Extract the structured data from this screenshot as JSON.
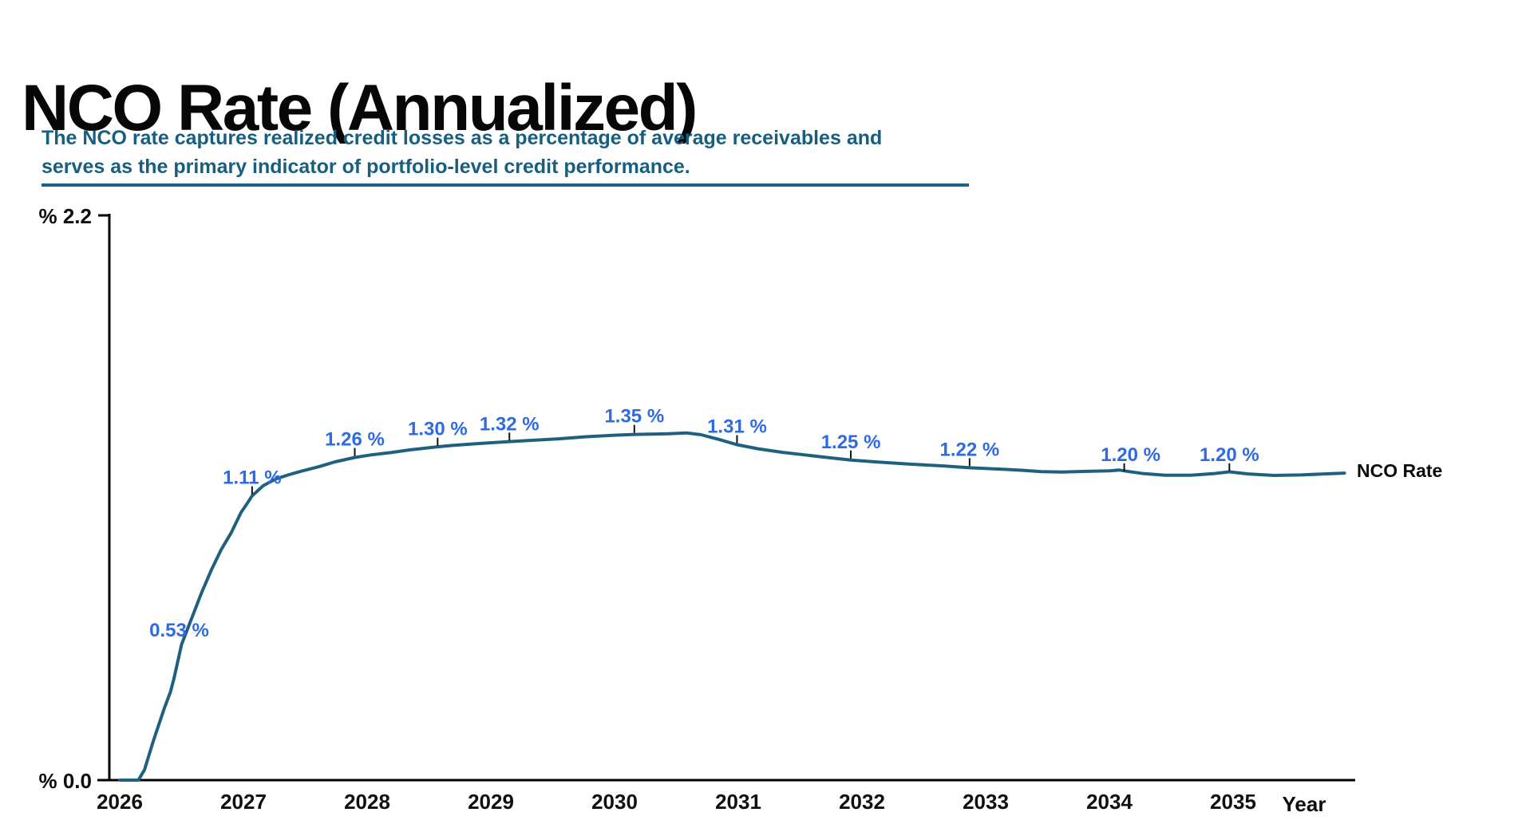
{
  "page": {
    "title": "NCO Rate (Annualized)"
  },
  "subtitle": {
    "line1": "The NCO rate captures realized credit losses as a percentage of average receivables and",
    "line2": "serves as the primary indicator of portfolio-level credit performance."
  },
  "colors": {
    "title_text": "#070707",
    "subtitle_text": "#175e80",
    "subtitle_underline": "#1a628a",
    "line": "#20607f",
    "data_label": "#2d6be4",
    "axis": "#000000",
    "tick_mark": "#111111",
    "background": "#ffffff"
  },
  "chart_data": {
    "type": "line",
    "title": "NCO Rate (Annualized)",
    "xlabel": "Year",
    "ylabel": "%",
    "ylim": [
      0.0,
      2.2
    ],
    "grid": false,
    "y_axis_labels": {
      "top": "% 2.2",
      "bottom": "% 0.0"
    },
    "x_ticks": [
      "2026",
      "2027",
      "2028",
      "2029",
      "2030",
      "2031",
      "2032",
      "2033",
      "2034",
      "2035"
    ],
    "legend": {
      "position": "right-of-line-end",
      "entries": [
        "NCO Rate"
      ]
    },
    "series": [
      {
        "name": "NCO Rate",
        "points": [
          [
            2026.0,
            0.0
          ],
          [
            2026.15,
            0.0
          ],
          [
            2026.2,
            0.04
          ],
          [
            2026.27,
            0.15
          ],
          [
            2026.36,
            0.28
          ],
          [
            2026.41,
            0.345
          ],
          [
            2026.44,
            0.4
          ],
          [
            2026.5,
            0.53
          ],
          [
            2026.58,
            0.63
          ],
          [
            2026.66,
            0.73
          ],
          [
            2026.74,
            0.82
          ],
          [
            2026.82,
            0.9
          ],
          [
            2026.9,
            0.965
          ],
          [
            2026.98,
            1.045
          ],
          [
            2027.03,
            1.08
          ],
          [
            2027.07,
            1.11
          ],
          [
            2027.16,
            1.15
          ],
          [
            2027.26,
            1.176
          ],
          [
            2027.37,
            1.193
          ],
          [
            2027.48,
            1.208
          ],
          [
            2027.61,
            1.224
          ],
          [
            2027.74,
            1.243
          ],
          [
            2027.9,
            1.26
          ],
          [
            2028.03,
            1.27
          ],
          [
            2028.19,
            1.279
          ],
          [
            2028.35,
            1.29
          ],
          [
            2028.57,
            1.302
          ],
          [
            2028.68,
            1.307
          ],
          [
            2028.88,
            1.314
          ],
          [
            2029.15,
            1.322
          ],
          [
            2029.29,
            1.326
          ],
          [
            2029.55,
            1.333
          ],
          [
            2029.77,
            1.341
          ],
          [
            2030.0,
            1.347
          ],
          [
            2030.16,
            1.35
          ],
          [
            2030.29,
            1.351
          ],
          [
            2030.44,
            1.353
          ],
          [
            2030.58,
            1.356
          ],
          [
            2030.7,
            1.349
          ],
          [
            2030.84,
            1.331
          ],
          [
            2030.99,
            1.31
          ],
          [
            2031.16,
            1.294
          ],
          [
            2031.36,
            1.28
          ],
          [
            2031.56,
            1.269
          ],
          [
            2031.74,
            1.259
          ],
          [
            2031.91,
            1.25
          ],
          [
            2032.13,
            1.242
          ],
          [
            2032.39,
            1.234
          ],
          [
            2032.66,
            1.227
          ],
          [
            2032.87,
            1.22
          ],
          [
            2033.1,
            1.215
          ],
          [
            2033.3,
            1.21
          ],
          [
            2033.45,
            1.205
          ],
          [
            2033.62,
            1.203
          ],
          [
            2033.82,
            1.206
          ],
          [
            2034.0,
            1.208
          ],
          [
            2034.08,
            1.211
          ],
          [
            2034.16,
            1.205
          ],
          [
            2034.28,
            1.197
          ],
          [
            2034.45,
            1.191
          ],
          [
            2034.66,
            1.191
          ],
          [
            2034.84,
            1.197
          ],
          [
            2034.97,
            1.204
          ],
          [
            2035.12,
            1.196
          ],
          [
            2035.33,
            1.19
          ],
          [
            2035.55,
            1.192
          ],
          [
            2035.74,
            1.196
          ],
          [
            2035.9,
            1.199
          ]
        ]
      }
    ],
    "annotations": [
      {
        "year": 2026.5,
        "value": 0.53,
        "label": "0.53 %",
        "tick": false,
        "dx": -3,
        "dy": -10
      },
      {
        "year": 2027.07,
        "value": 1.11,
        "label": "1.11 %",
        "tick": true
      },
      {
        "year": 2027.9,
        "value": 1.26,
        "label": "1.26 %",
        "tick": true
      },
      {
        "year": 2028.57,
        "value": 1.3,
        "label": "1.30 %",
        "tick": true
      },
      {
        "year": 2029.15,
        "value": 1.32,
        "label": "1.32 %",
        "tick": true
      },
      {
        "year": 2030.16,
        "value": 1.35,
        "label": "1.35 %",
        "tick": true
      },
      {
        "year": 2030.99,
        "value": 1.31,
        "label": "1.31 %",
        "tick": true
      },
      {
        "year": 2031.91,
        "value": 1.25,
        "label": "1.25 %",
        "tick": true
      },
      {
        "year": 2032.87,
        "value": 1.22,
        "label": "1.22 %",
        "tick": true
      },
      {
        "year": 2034.12,
        "value": 1.2,
        "label": "1.20 %",
        "tick": true,
        "dx": 8
      },
      {
        "year": 2034.97,
        "value": 1.2,
        "label": "1.20 %",
        "tick": true
      }
    ]
  }
}
